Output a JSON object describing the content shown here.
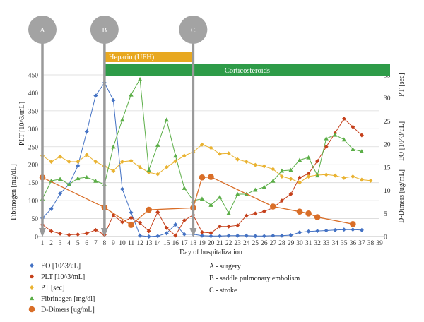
{
  "chart_data": {
    "type": "line",
    "xlabel": "Day of hospitalization",
    "x_ticks": [
      1,
      2,
      3,
      4,
      5,
      6,
      7,
      8,
      9,
      10,
      11,
      12,
      13,
      14,
      15,
      16,
      17,
      18,
      19,
      20,
      21,
      22,
      23,
      24,
      25,
      26,
      27,
      28,
      29,
      30,
      31,
      32,
      33,
      34,
      35,
      36,
      37,
      38,
      39
    ],
    "xlim": [
      1,
      39
    ],
    "y_left": {
      "labels": [
        "Fibrinogen [mg/dL]",
        "PLT [10^3/mL]"
      ],
      "ylim": [
        0,
        450
      ],
      "ticks": [
        0,
        50,
        100,
        150,
        200,
        250,
        300,
        350,
        400,
        450
      ]
    },
    "y_right": {
      "labels": [
        "D-Dimers [ug/mL]",
        "EO [10^3/uL]",
        "PT [sec]"
      ],
      "ylim": [
        0,
        35
      ],
      "ticks": [
        0,
        5,
        10,
        15,
        20,
        25,
        30,
        35
      ]
    },
    "series": [
      {
        "name": "EO [10^3/uL]",
        "axis": "right",
        "color": "#4472c4",
        "marker": "diamond",
        "x": [
          1,
          2,
          3,
          4,
          5,
          6,
          7,
          8,
          9,
          10,
          11,
          12,
          13,
          14,
          15,
          16,
          17,
          18,
          19,
          20,
          21,
          22,
          23,
          24,
          25,
          26,
          27,
          28,
          29,
          30,
          31,
          32,
          33,
          34,
          35,
          36,
          37
        ],
        "y": [
          4,
          6,
          9.3,
          11.3,
          15.3,
          22.7,
          30.5,
          33.3,
          29.5,
          10.3,
          5.2,
          0.2,
          0,
          0.1,
          0.7,
          2.6,
          0.5,
          0.5,
          0.2,
          0.1,
          0.1,
          0.2,
          0.2,
          0.2,
          0.1,
          0.1,
          0.2,
          0.2,
          0.3,
          0.9,
          1.1,
          1.2,
          1.3,
          1.4,
          1.5,
          1.5,
          1.4
        ]
      },
      {
        "name": "PLT [10^3/mL]",
        "axis": "left",
        "color": "#c5401b",
        "marker": "diamond",
        "x": [
          1,
          2,
          3,
          4,
          5,
          6,
          7,
          8,
          9,
          10,
          11,
          12,
          13,
          14,
          15,
          16,
          17,
          18,
          19,
          20,
          21,
          22,
          23,
          24,
          25,
          26,
          27,
          28,
          29,
          30,
          31,
          32,
          33,
          34,
          35,
          36,
          37
        ],
        "y": [
          33,
          15,
          8,
          5,
          6,
          9,
          18,
          5,
          60,
          40,
          52,
          38,
          15,
          68,
          24,
          3,
          45,
          60,
          12,
          10,
          28,
          28,
          31,
          58,
          64,
          70,
          80,
          100,
          118,
          164,
          175,
          210,
          250,
          288,
          328,
          305,
          282
        ]
      },
      {
        "name": "PT [sec]",
        "axis": "right",
        "color": "#e9b230",
        "marker": "diamond",
        "x": [
          1,
          2,
          3,
          4,
          5,
          6,
          7,
          8,
          9,
          10,
          11,
          12,
          13,
          14,
          15,
          16,
          17,
          18,
          19,
          20,
          21,
          22,
          23,
          24,
          25,
          26,
          27,
          28,
          29,
          30,
          31,
          32,
          33,
          34,
          35,
          36,
          37,
          38
        ],
        "y": [
          17.5,
          16.2,
          17.3,
          16.2,
          16.2,
          17.7,
          16.2,
          15.2,
          14.2,
          16.2,
          16.4,
          15,
          13.9,
          13.5,
          15,
          16.3,
          17.5,
          18.3,
          19.9,
          19.2,
          17.9,
          18,
          16.7,
          16.2,
          15.5,
          15.2,
          14.6,
          13,
          12.5,
          11.7,
          13,
          13.3,
          13.4,
          13.2,
          12.7,
          13,
          12.3,
          12.1
        ]
      },
      {
        "name": "Fibrinogen [mg/dl]",
        "axis": "left",
        "color": "#5bae47",
        "marker": "triangle",
        "x": [
          1,
          2,
          3,
          4,
          5,
          6,
          7,
          8,
          9,
          10,
          11,
          12,
          13,
          14,
          15,
          16,
          17,
          18,
          19,
          20,
          21,
          22,
          23,
          24,
          25,
          26,
          27,
          28,
          29,
          30,
          31,
          32,
          33,
          34,
          35,
          36,
          37
        ],
        "y": [
          105,
          155,
          160,
          145,
          162,
          165,
          155,
          145,
          250,
          325,
          395,
          438,
          185,
          255,
          325,
          225,
          135,
          100,
          105,
          88,
          110,
          65,
          118,
          118,
          130,
          138,
          155,
          183,
          185,
          213,
          220,
          170,
          273,
          283,
          270,
          243,
          237
        ]
      },
      {
        "name": "D-Dimers [ug/mL]",
        "axis": "right",
        "color": "#d96e28",
        "marker": "circle",
        "x": [
          1,
          8,
          11,
          13,
          18,
          19,
          20,
          27,
          30,
          31,
          32,
          36
        ],
        "y": [
          12.8,
          6.3,
          2.5,
          5.8,
          6.2,
          12.8,
          12.9,
          6.5,
          5.4,
          5,
          4.2,
          2.7
        ]
      }
    ]
  },
  "events": [
    {
      "label": "A",
      "day": 1
    },
    {
      "label": "B",
      "day": 8
    },
    {
      "label": "C",
      "day": 18
    }
  ],
  "bands": [
    {
      "label": "Heparin (UFH)",
      "start": 8,
      "end": 18,
      "color": "#e8a820"
    },
    {
      "label": "Corticosteroids",
      "start": 8,
      "end": 39,
      "color": "#2e9b48"
    }
  ],
  "legend": [
    "EO [10^3/uL]",
    "PLT [10^3/mL]",
    "PT [sec]",
    "Fibrinogen [mg/dl]",
    "D-Dimers [ug/mL]"
  ],
  "event_key": [
    "A - surgery",
    "B - saddle pulmonary embolism",
    "C - stroke"
  ]
}
